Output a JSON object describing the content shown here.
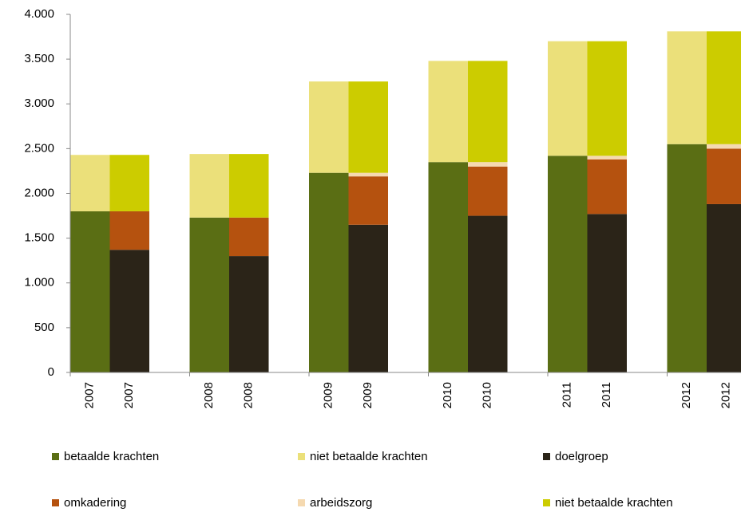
{
  "chart_data": {
    "type": "stacked_bar",
    "categories": [
      "2007",
      "2007",
      "2008",
      "2008",
      "2009",
      "2009",
      "2010",
      "2010",
      "2011",
      "2011",
      "2012",
      "2012"
    ],
    "series": [
      {
        "name": "betaalde krachten",
        "color": "#5a6e14",
        "values": [
          1800,
          null,
          1730,
          null,
          2230,
          null,
          2350,
          null,
          2420,
          null,
          2550,
          null
        ]
      },
      {
        "name": "niet betaalde krachten",
        "color": "#ebe07a",
        "values": [
          630,
          null,
          710,
          null,
          1020,
          null,
          1130,
          null,
          1280,
          null,
          1260,
          null
        ]
      },
      {
        "name": "doelgroep",
        "color": "#2b2418",
        "values": [
          null,
          1370,
          null,
          1300,
          null,
          1650,
          null,
          1750,
          null,
          1770,
          null,
          1880
        ]
      },
      {
        "name": "omkadering",
        "color": "#b5520f",
        "values": [
          null,
          430,
          null,
          430,
          null,
          540,
          null,
          550,
          null,
          610,
          null,
          620
        ]
      },
      {
        "name": "arbeidszorg",
        "color": "#f5d9b0",
        "values": [
          null,
          0,
          null,
          0,
          null,
          40,
          null,
          50,
          null,
          40,
          null,
          50
        ]
      },
      {
        "name": "niet betaalde krachten",
        "color": "#cccc00",
        "values": [
          null,
          630,
          null,
          710,
          null,
          1020,
          null,
          1130,
          null,
          1280,
          null,
          1260
        ]
      }
    ],
    "ylim": [
      0,
      4000
    ],
    "yticks": [
      0,
      500,
      {
        "value": 1000,
        "label": "1.000"
      },
      {
        "value": 1500,
        "label": "1.500"
      },
      {
        "value": 2000,
        "label": "2.000"
      },
      {
        "value": 2500,
        "label": "2.500"
      },
      {
        "value": 3000,
        "label": "3.000"
      },
      {
        "value": 3500,
        "label": "3.500"
      },
      {
        "value": 4000,
        "label": "4.000"
      }
    ],
    "grid": false
  }
}
